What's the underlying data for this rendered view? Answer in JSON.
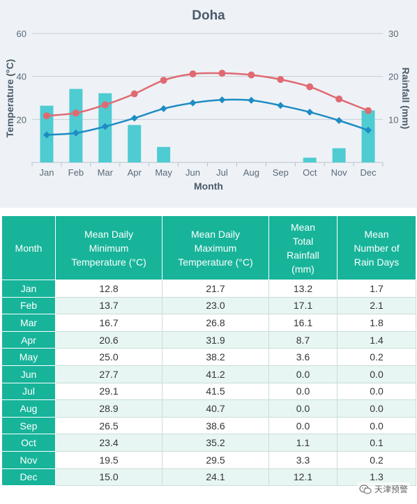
{
  "chart_data": {
    "type": "bar+line",
    "title": "Doha",
    "xlabel": "Month",
    "ylabel_left": "Temperature (°C)",
    "ylabel_right": "Rainfall (mm)",
    "categories": [
      "Jan",
      "Feb",
      "Mar",
      "Apr",
      "May",
      "Jun",
      "Jul",
      "Aug",
      "Sep",
      "Oct",
      "Nov",
      "Dec"
    ],
    "y_left": {
      "min": 0,
      "max": 60,
      "ticks": [
        20,
        40,
        60
      ]
    },
    "y_right": {
      "min": 0,
      "max": 30,
      "ticks": [
        10,
        20,
        30
      ]
    },
    "grid": true,
    "series": [
      {
        "name": "Mean Total Rainfall (mm)",
        "type": "bar",
        "axis": "right",
        "color": "#4fcbd2",
        "values": [
          13.2,
          17.1,
          16.1,
          8.7,
          3.6,
          0.0,
          0.0,
          0.0,
          0.0,
          1.1,
          3.3,
          12.1
        ]
      },
      {
        "name": "Mean Daily Maximum Temperature (°C)",
        "type": "line",
        "axis": "left",
        "color": "#e06a72",
        "marker": "circle",
        "values": [
          21.7,
          23.0,
          26.8,
          31.9,
          38.2,
          41.2,
          41.5,
          40.7,
          38.6,
          35.2,
          29.5,
          24.1
        ]
      },
      {
        "name": "Mean Daily Minimum Temperature (°C)",
        "type": "line",
        "axis": "left",
        "color": "#1e8cc4",
        "marker": "diamond",
        "values": [
          12.8,
          13.7,
          16.7,
          20.6,
          25.0,
          27.7,
          29.1,
          28.9,
          26.5,
          23.4,
          19.5,
          15.0
        ]
      }
    ]
  },
  "table": {
    "headers": [
      [
        "Month"
      ],
      [
        "Mean Daily",
        "Minimum",
        "Temperature (°C)"
      ],
      [
        "Mean Daily",
        "Maximum",
        "Temperature (°C)"
      ],
      [
        "Mean",
        "Total",
        "Rainfall",
        "(mm)"
      ],
      [
        "Mean",
        "Number of",
        "Rain Days"
      ]
    ],
    "rows": [
      [
        "Jan",
        "12.8",
        "21.7",
        "13.2",
        "1.7"
      ],
      [
        "Feb",
        "13.7",
        "23.0",
        "17.1",
        "2.1"
      ],
      [
        "Mar",
        "16.7",
        "26.8",
        "16.1",
        "1.8"
      ],
      [
        "Apr",
        "20.6",
        "31.9",
        "8.7",
        "1.4"
      ],
      [
        "May",
        "25.0",
        "38.2",
        "3.6",
        "0.2"
      ],
      [
        "Jun",
        "27.7",
        "41.2",
        "0.0",
        "0.0"
      ],
      [
        "Jul",
        "29.1",
        "41.5",
        "0.0",
        "0.0"
      ],
      [
        "Aug",
        "28.9",
        "40.7",
        "0.0",
        "0.0"
      ],
      [
        "Sep",
        "26.5",
        "38.6",
        "0.0",
        "0.0"
      ],
      [
        "Oct",
        "23.4",
        "35.2",
        "1.1",
        "0.1"
      ],
      [
        "Nov",
        "19.5",
        "29.5",
        "3.3",
        "0.2"
      ],
      [
        "Dec",
        "15.0",
        "24.1",
        "12.1",
        "1.3"
      ]
    ]
  },
  "watermark": {
    "text": "天津预警",
    "icon": "wechat-icon"
  },
  "colors": {
    "panel_bg": "#eef2f6",
    "table_header": "#17b49a",
    "row_alt": "#e8f6f3"
  }
}
